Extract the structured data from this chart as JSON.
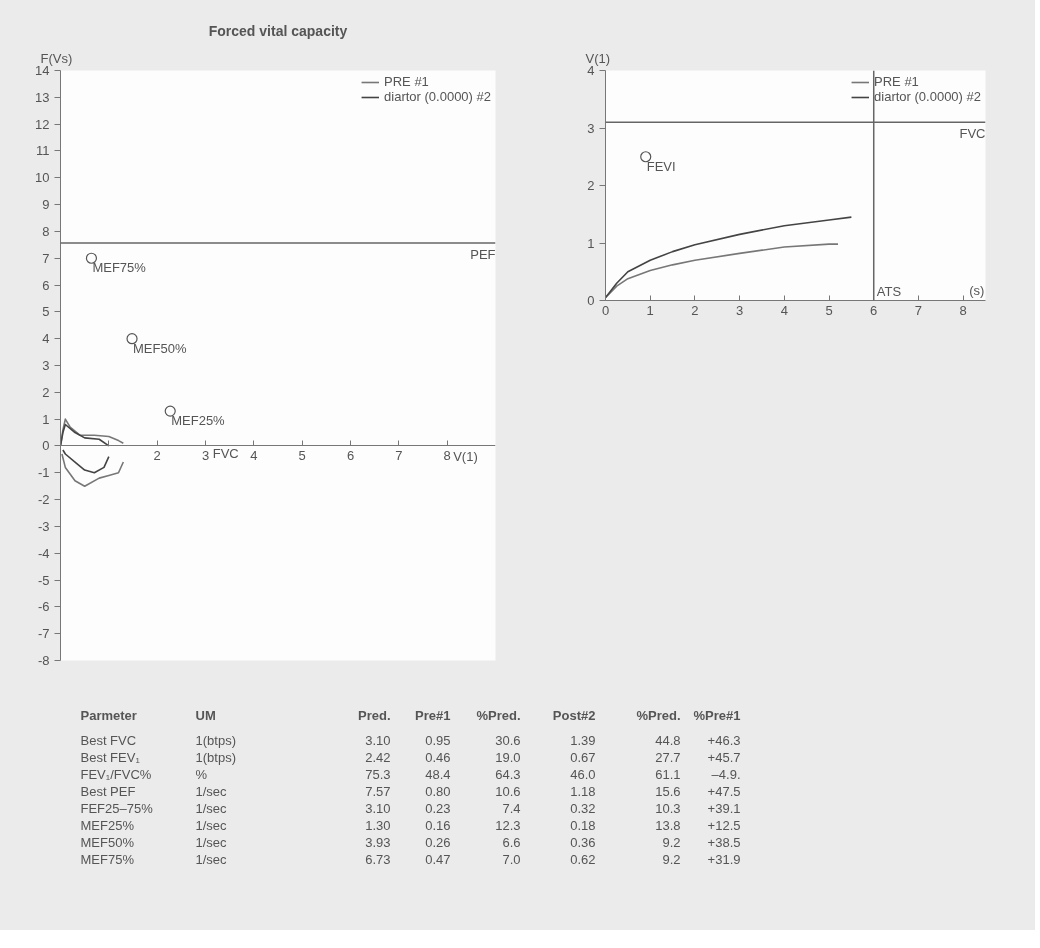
{
  "chart_data": [
    {
      "type": "line",
      "title": "Forced vital capacity",
      "xlabel": "V(1)",
      "ylabel": "F(Vs)",
      "xlim": [
        0,
        9
      ],
      "ylim": [
        -8,
        14
      ],
      "xticks": [
        {
          "value": 1,
          "label": null
        },
        2,
        3,
        4,
        5,
        6,
        7,
        8
      ],
      "yticks": [
        -8,
        -7,
        -6,
        -5,
        -4,
        -3,
        -2,
        -1,
        0,
        1,
        2,
        3,
        4,
        5,
        6,
        7,
        8,
        9,
        10,
        11,
        12,
        13,
        14
      ],
      "legend": "top right",
      "grid": false,
      "series": [
        {
          "name": "PRE #1",
          "color": "#777777",
          "x": [
            0,
            0.05,
            0.1,
            0.2,
            0.4,
            0.7,
            1.0,
            1.2,
            1.3
          ],
          "values": [
            0,
            0.6,
            1.0,
            0.7,
            0.4,
            0.4,
            0.35,
            0.2,
            0.1
          ]
        },
        {
          "color": "#777777",
          "x": [
            0.03,
            0.1,
            0.3,
            0.5,
            0.8,
            1.0,
            1.2,
            1.3
          ],
          "values": [
            -0.3,
            -0.8,
            -1.3,
            -1.5,
            -1.2,
            -1.1,
            -1.0,
            -0.6
          ]
        },
        {
          "name": "diartor (0.0000) #2",
          "color": "#444444",
          "x": [
            0,
            0.05,
            0.1,
            0.3,
            0.5,
            0.8,
            1.0
          ],
          "values": [
            0,
            0.5,
            0.8,
            0.5,
            0.3,
            0.25,
            0.0
          ]
        },
        {
          "color": "#444444",
          "x": [
            0.05,
            0.1,
            0.3,
            0.5,
            0.7,
            0.9,
            1.0
          ],
          "values": [
            -0.15,
            -0.3,
            -0.6,
            -0.9,
            -1.0,
            -0.8,
            -0.4
          ]
        },
        {
          "type": "scatter",
          "color": "#555555",
          "marker": "circle",
          "x": [
            0.64,
            1.48,
            2.27
          ],
          "values": [
            7.0,
            4.0,
            1.3
          ]
        }
      ],
      "ref_lines": [
        {
          "axis": "y",
          "value": 7.57,
          "label": "PEF"
        }
      ],
      "annotations": [
        {
          "text": "MEF75%",
          "x": 0.64,
          "y": 7.0
        },
        {
          "text": "MEF50%",
          "x": 1.48,
          "y": 4.0
        },
        {
          "text": "MEF25%",
          "x": 2.27,
          "y": 1.3
        },
        "FVC"
      ]
    },
    {
      "type": "line",
      "xlabel": "(s)",
      "ylabel": "V(1)",
      "xlim": [
        0,
        8.5
      ],
      "ylim": [
        0,
        4
      ],
      "xticks": [
        0,
        1,
        2,
        3,
        4,
        5,
        6,
        7,
        8
      ],
      "yticks": [
        0,
        1,
        2,
        3,
        4
      ],
      "legend": "top right",
      "grid": false,
      "series": [
        {
          "name": "PRE #1",
          "color": "#777777",
          "x": [
            0,
            0.25,
            0.5,
            1,
            1.5,
            2,
            3,
            4,
            5,
            5.2
          ],
          "values": [
            0.05,
            0.25,
            0.38,
            0.52,
            0.62,
            0.7,
            0.82,
            0.93,
            0.98,
            0.98
          ]
        },
        {
          "name": "diartor (0.0000) #2",
          "color": "#444444",
          "x": [
            0,
            0.25,
            0.5,
            1,
            1.5,
            2,
            3,
            4,
            5,
            5.5
          ],
          "values": [
            0.05,
            0.3,
            0.5,
            0.7,
            0.85,
            0.97,
            1.15,
            1.3,
            1.4,
            1.45
          ]
        },
        {
          "type": "scatter",
          "color": "#555555",
          "marker": "circle",
          "x": [
            0.9
          ],
          "values": [
            2.5
          ]
        }
      ],
      "ref_lines": [
        {
          "axis": "y",
          "value": 3.1,
          "label": "FVC"
        },
        {
          "axis": "x",
          "value": 6,
          "label": "ATS"
        }
      ],
      "annotations": [
        {
          "text": "FEVI",
          "x": 0.9,
          "y": 2.5
        }
      ]
    },
    {
      "type": "other",
      "categories": [
        "Parmeter",
        "UM",
        "Pred.",
        "Pre#1",
        "%Pred.",
        "Post#2",
        "%Pred.",
        "%Pre#1"
      ],
      "annotations": [
        "Best FVC",
        "1(btps)",
        "3.10",
        "0.95",
        "30.6",
        "1.39",
        "44.8",
        "+46.3",
        "Best FEV₁",
        "1(btps)",
        "2.42",
        "0.46",
        "19.0",
        "0.67",
        "27.7",
        "+45.7",
        "FEV₁/FVC%",
        "%",
        "75.3",
        "48.4",
        "64.3",
        "46.0",
        "61.1",
        "–4.9.",
        "Best PEF",
        "1/sec",
        "7.57",
        "0.80",
        "10.6",
        "1.18",
        "15.6",
        "+47.5",
        "FEF25–75%",
        "1/sec",
        "3.10",
        "0.23",
        "7.4",
        "0.32",
        "10.3",
        "+39.1",
        "MEF25%",
        "1/sec",
        "1.30",
        "0.16",
        "12.3",
        "0.18",
        "13.8",
        "+12.5",
        "MEF50%",
        "1/sec",
        "3.93",
        "0.26",
        "6.6",
        "0.36",
        "9.2",
        "+38.5",
        "MEF75%",
        "1/sec",
        "6.73",
        "0.47",
        "7.0",
        "0.62",
        "9.2",
        "+31.9"
      ]
    }
  ]
}
